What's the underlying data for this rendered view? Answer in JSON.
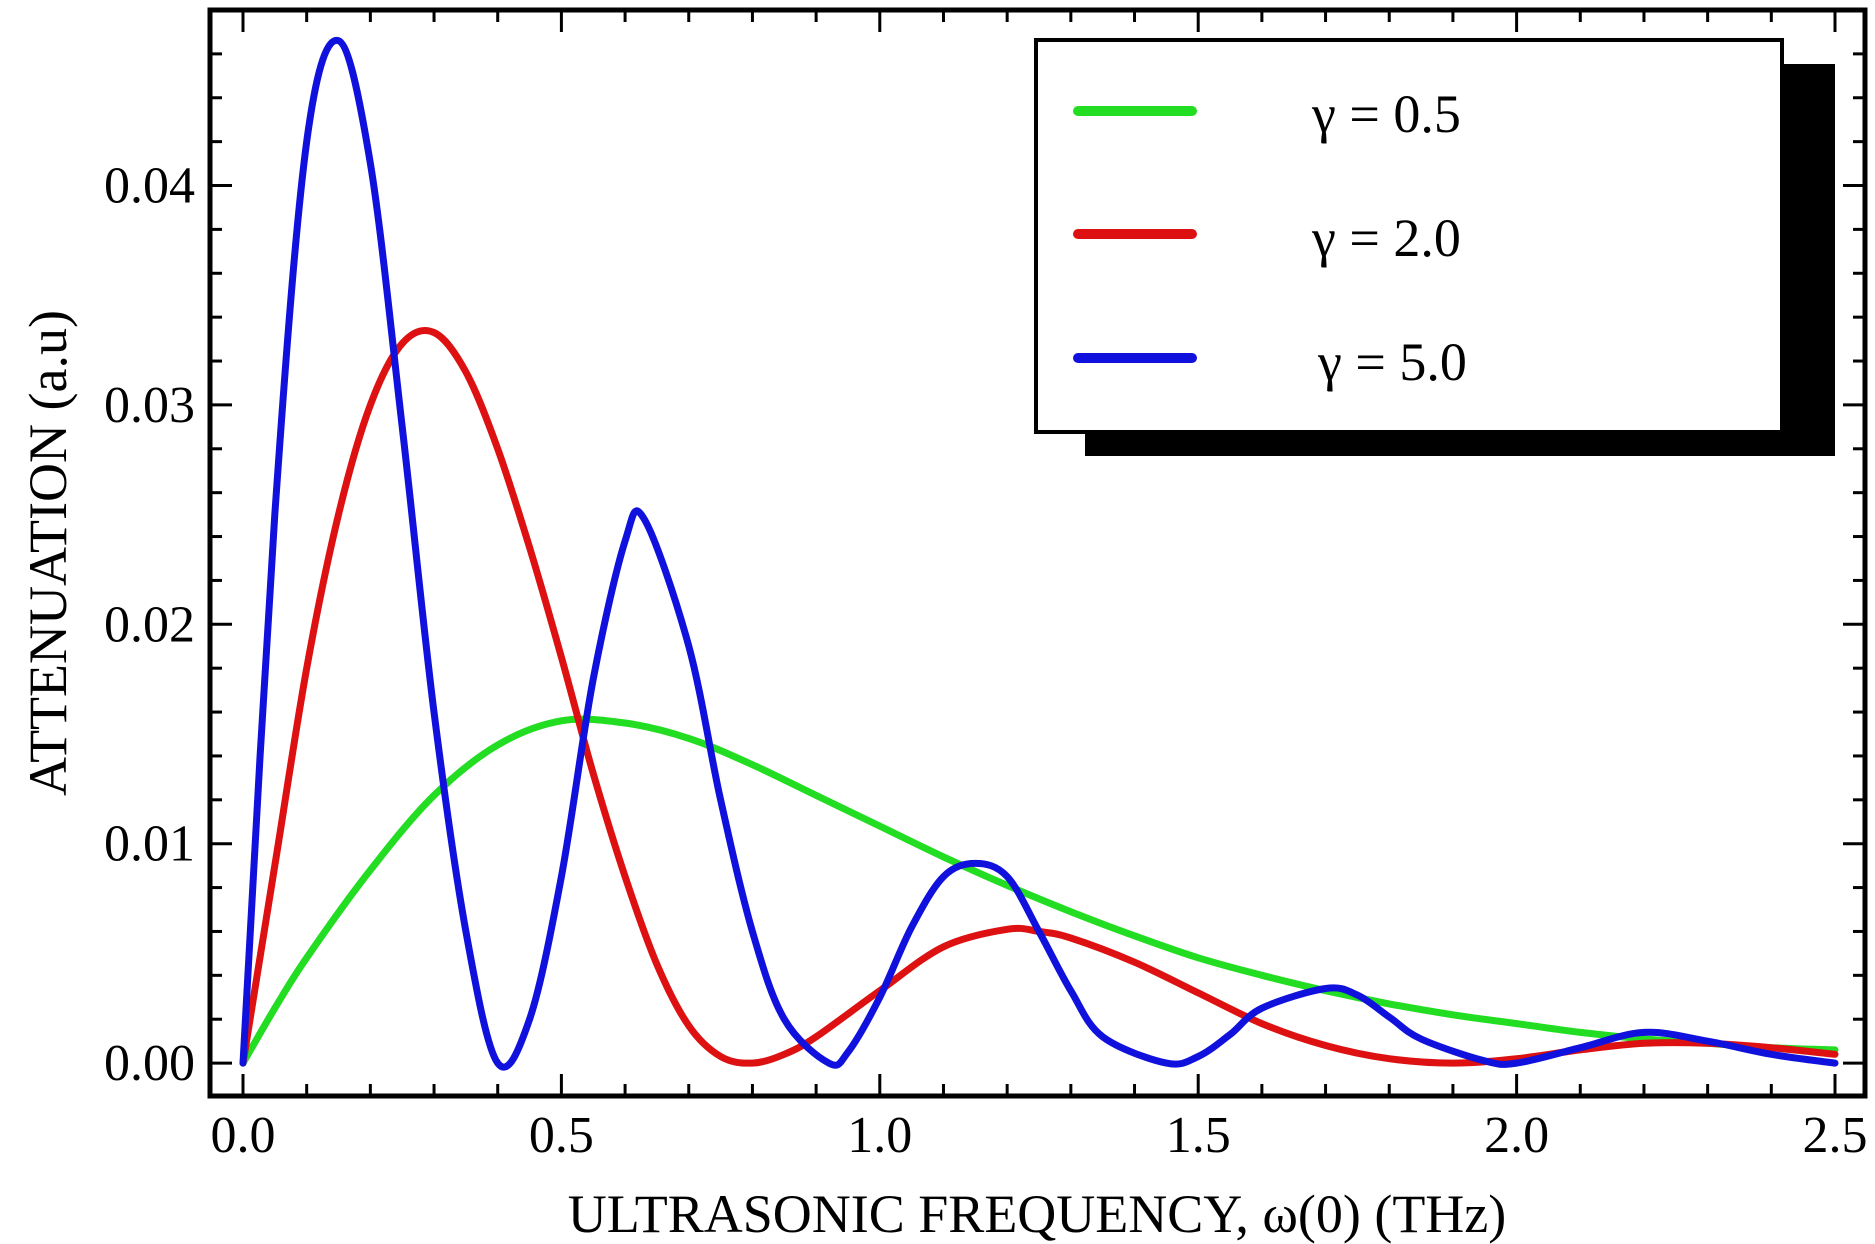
{
  "chart_data": {
    "type": "line",
    "title": "",
    "xlabel": "ULTRASONIC FREQUENCY, ω(0) (THz)",
    "ylabel": "ATTENUATION (a.u)",
    "xlim": [
      0.0,
      2.5
    ],
    "ylim": [
      -0.0015,
      0.048
    ],
    "xticks": [
      0.0,
      0.5,
      1.0,
      1.5,
      2.0,
      2.5
    ],
    "xtick_labels": [
      "0.0",
      "0.5",
      "1.0",
      "1.5",
      "2.0",
      "2.5"
    ],
    "yticks": [
      0.0,
      0.01,
      0.02,
      0.03,
      0.04
    ],
    "ytick_labels": [
      "0.00",
      "0.01",
      "0.02",
      "0.03",
      "0.04"
    ],
    "grid": false,
    "legend_position": "top-right",
    "series": [
      {
        "name": "γ = 0.5",
        "color": "#22dd22",
        "x": [
          0.0,
          0.05,
          0.1,
          0.2,
          0.3,
          0.4,
          0.5,
          0.6,
          0.7,
          0.8,
          0.9,
          1.0,
          1.1,
          1.2,
          1.3,
          1.4,
          1.5,
          1.6,
          1.7,
          1.8,
          1.9,
          2.0,
          2.1,
          2.2,
          2.3,
          2.4,
          2.5
        ],
        "y": [
          0.0,
          0.0025,
          0.0048,
          0.0088,
          0.0122,
          0.0145,
          0.0156,
          0.0155,
          0.0148,
          0.0136,
          0.0122,
          0.0108,
          0.0094,
          0.0081,
          0.0069,
          0.0058,
          0.0048,
          0.004,
          0.0033,
          0.0027,
          0.0022,
          0.0018,
          0.0014,
          0.0011,
          0.0009,
          0.0007,
          0.0006
        ]
      },
      {
        "name": "γ = 2.0",
        "color": "#dd1111",
        "x": [
          0.0,
          0.05,
          0.1,
          0.15,
          0.2,
          0.25,
          0.3,
          0.35,
          0.4,
          0.45,
          0.5,
          0.55,
          0.6,
          0.65,
          0.7,
          0.75,
          0.8,
          0.85,
          0.9,
          1.0,
          1.1,
          1.2,
          1.25,
          1.3,
          1.4,
          1.5,
          1.6,
          1.7,
          1.8,
          1.9,
          2.0,
          2.1,
          2.2,
          2.3,
          2.4,
          2.5
        ],
        "y": [
          0.0,
          0.009,
          0.018,
          0.025,
          0.03,
          0.0328,
          0.0333,
          0.0315,
          0.028,
          0.0235,
          0.0185,
          0.0132,
          0.0085,
          0.0045,
          0.0017,
          0.0003,
          0.0,
          0.0004,
          0.0012,
          0.0033,
          0.0053,
          0.0061,
          0.006,
          0.0057,
          0.0046,
          0.0032,
          0.0018,
          0.0008,
          0.0002,
          0.0,
          0.0002,
          0.0006,
          0.0009,
          0.0009,
          0.0007,
          0.0004
        ]
      },
      {
        "name": "γ = 5.0",
        "color": "#1111dd",
        "x": [
          0.0,
          0.05,
          0.1,
          0.15,
          0.2,
          0.25,
          0.3,
          0.35,
          0.4,
          0.45,
          0.5,
          0.55,
          0.6,
          0.63,
          0.7,
          0.75,
          0.8,
          0.85,
          0.92,
          0.95,
          1.0,
          1.05,
          1.1,
          1.15,
          1.2,
          1.25,
          1.3,
          1.35,
          1.45,
          1.5,
          1.55,
          1.6,
          1.7,
          1.75,
          1.8,
          1.85,
          1.95,
          2.0,
          2.1,
          2.2,
          2.3,
          2.4,
          2.5
        ],
        "y": [
          0.0,
          0.025,
          0.042,
          0.0466,
          0.041,
          0.029,
          0.016,
          0.006,
          0.0,
          0.002,
          0.0085,
          0.0175,
          0.0238,
          0.0248,
          0.019,
          0.012,
          0.006,
          0.002,
          0.0,
          0.0005,
          0.003,
          0.0062,
          0.0085,
          0.0091,
          0.0085,
          0.006,
          0.0033,
          0.0012,
          0.0,
          0.0003,
          0.0013,
          0.0025,
          0.0034,
          0.0031,
          0.0021,
          0.0011,
          0.0001,
          0.0,
          0.0007,
          0.0014,
          0.001,
          0.0004,
          0.0
        ]
      }
    ]
  }
}
